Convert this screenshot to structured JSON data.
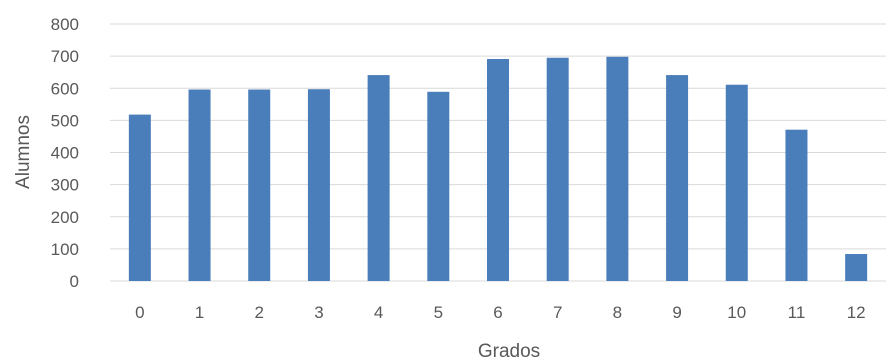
{
  "chart_data": {
    "type": "bar",
    "categories": [
      "0",
      "1",
      "2",
      "3",
      "4",
      "5",
      "6",
      "7",
      "8",
      "9",
      "10",
      "11",
      "12"
    ],
    "values": [
      518,
      596,
      596,
      597,
      641,
      589,
      691,
      695,
      698,
      641,
      611,
      471,
      84
    ],
    "xlabel": "Grados",
    "ylabel": "Alumnos",
    "ylim": [
      0,
      800
    ],
    "yticks": [
      "0",
      "100",
      "200",
      "300",
      "400",
      "500",
      "600",
      "700",
      "800"
    ],
    "grid": true,
    "legend": "none",
    "bar_color": "#4a7ebb"
  }
}
